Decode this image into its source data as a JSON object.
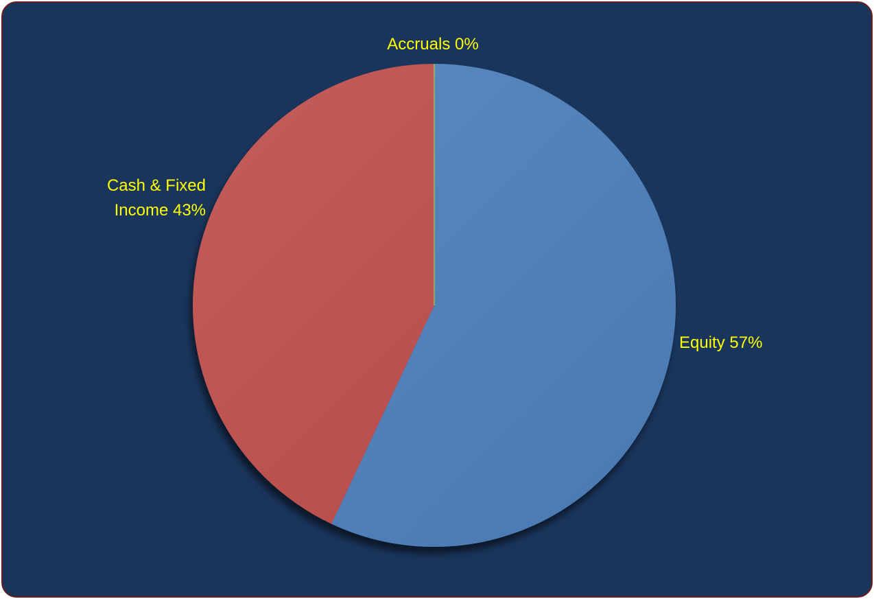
{
  "chart_data": {
    "type": "pie",
    "slices": [
      {
        "name": "Equity",
        "value": 57,
        "label_lines": [
          "Equity 57%"
        ],
        "color": "#4f81bd"
      },
      {
        "name": "Cash & Fixed Income",
        "value": 43,
        "label_lines": [
          "Cash & Fixed",
          "Income 43%"
        ],
        "color": "#c0504d"
      },
      {
        "name": "Accruals",
        "value": 0,
        "label_lines": [
          "Accruals 0%"
        ],
        "color": "#9bbb59"
      }
    ],
    "start_angle": "12 o'clock",
    "direction": "clockwise",
    "label_color": "#ffff00",
    "background_color": "#1a355c",
    "border_color": "#6b1e1e",
    "legend": "none"
  }
}
